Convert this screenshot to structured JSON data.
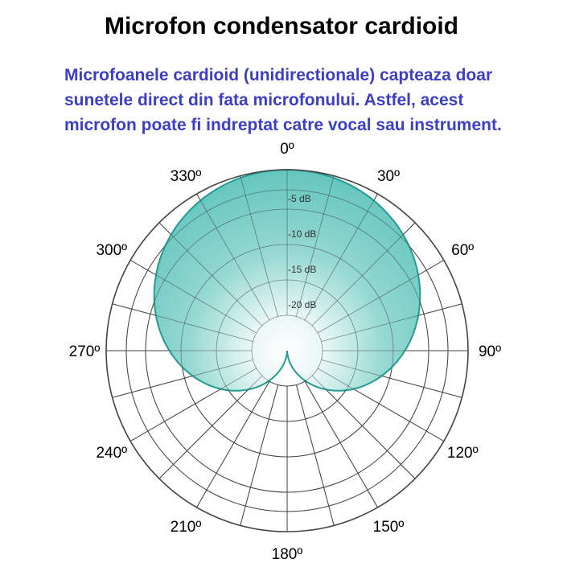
{
  "title": "Microfon condensator cardioid",
  "description": "Microfoanele cardioid (unidirectionale) capteaza doar sunetele direct din fata microfonului. Astfel, acest microfon poate fi indreptat catre vocal sau instrument.",
  "colors": {
    "title": "#000000",
    "description": "#3b3fc4",
    "pattern_fill": "#5cc3bb",
    "pattern_stroke": "#249c94",
    "grid": "#444444"
  },
  "diagram": {
    "angle_labels": [
      "0º",
      "30º",
      "60º",
      "90º",
      "120º",
      "150º",
      "180º",
      "210º",
      "240º",
      "270º",
      "300º",
      "330º"
    ],
    "db_labels": [
      "-5 dB",
      "-10 dB",
      "-15 dB",
      "-20 dB"
    ],
    "pattern": "cardioid"
  }
}
